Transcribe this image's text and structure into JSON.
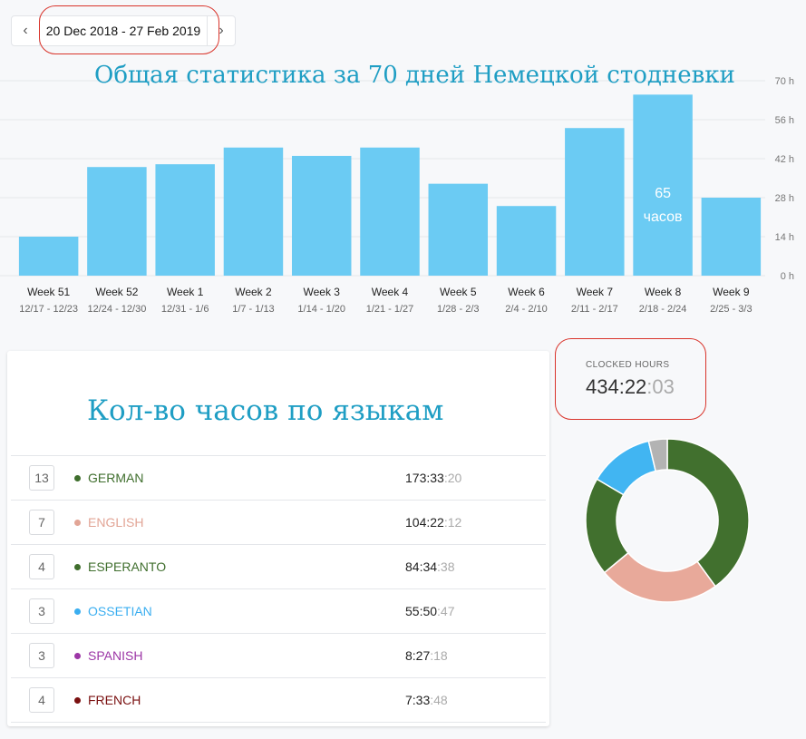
{
  "date_nav": {
    "prev": "‹",
    "range": "20 Dec 2018 - 27 Feb 2019",
    "next": "›"
  },
  "overlay": {
    "chart_title": "Общая статистика за 70 дней Немецкой стодневки",
    "bar_annotation_1": "65",
    "bar_annotation_2": "часов",
    "languages_title": "Кол-во часов по языкам"
  },
  "chart_data": {
    "type": "bar",
    "categories": [
      "Week 51",
      "Week 52",
      "Week 1",
      "Week 2",
      "Week 3",
      "Week 4",
      "Week 5",
      "Week 6",
      "Week 7",
      "Week 8",
      "Week 9"
    ],
    "sublabels": [
      "12/17 - 12/23",
      "12/24 - 12/30",
      "12/31 - 1/6",
      "1/7 - 1/13",
      "1/14 - 1/20",
      "1/21 - 1/27",
      "1/28 - 2/3",
      "2/4 - 2/10",
      "2/11 - 2/17",
      "2/18 - 2/24",
      "2/25 - 3/3"
    ],
    "values": [
      14,
      39,
      40,
      46,
      43,
      46,
      33,
      25,
      53,
      65,
      28
    ],
    "y_ticks": [
      "70 h",
      "56 h",
      "42 h",
      "28 h",
      "14 h",
      "0 h"
    ],
    "ylim": [
      0,
      70
    ],
    "grid": true,
    "color": "#6bcbf3"
  },
  "clocked": {
    "label": "CLOCKED HOURS",
    "value": "434:22",
    "seconds": ":03"
  },
  "languages": [
    {
      "count": "13",
      "name": "GERMAN",
      "color": "#3f6e2d",
      "dur": "173:33",
      "sec": ":20",
      "hours": 173.56
    },
    {
      "count": "7",
      "name": "ENGLISH",
      "color": "#e2a596",
      "dur": "104:22",
      "sec": ":12",
      "hours": 104.37
    },
    {
      "count": "4",
      "name": "ESPERANTO",
      "color": "#3f6e2d",
      "dur": "84:34",
      "sec": ":38",
      "hours": 84.58
    },
    {
      "count": "3",
      "name": "OSSETIAN",
      "color": "#3aaef0",
      "dur": "55:50",
      "sec": ":47",
      "hours": 55.85
    },
    {
      "count": "3",
      "name": "SPANISH",
      "color": "#9c36a6",
      "dur": "8:27",
      "sec": ":18",
      "hours": 8.46
    },
    {
      "count": "4",
      "name": "FRENCH",
      "color": "#7a1010",
      "dur": "7:33",
      "sec": ":48",
      "hours": 7.56
    }
  ],
  "donut_data": {
    "type": "pie",
    "values": [
      173.56,
      104.37,
      84.58,
      55.85,
      16.02
    ],
    "colors": [
      "#41702e",
      "#e8a99a",
      "#41702e",
      "#41b5f2",
      "#b3b3b3"
    ]
  }
}
